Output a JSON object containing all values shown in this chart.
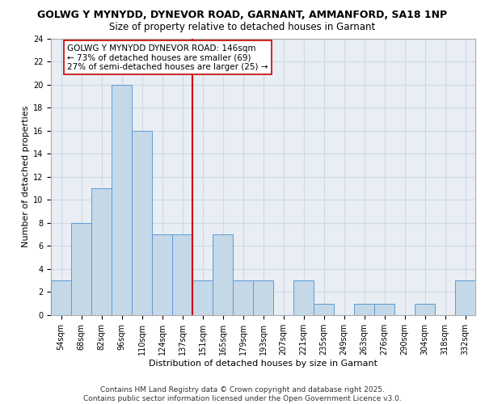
{
  "title_line1": "GOLWG Y MYNYDD, DYNEVOR ROAD, GARNANT, AMMANFORD, SA18 1NP",
  "title_line2": "Size of property relative to detached houses in Garnant",
  "xlabel": "Distribution of detached houses by size in Garnant",
  "ylabel": "Number of detached properties",
  "categories": [
    "54sqm",
    "68sqm",
    "82sqm",
    "96sqm",
    "110sqm",
    "124sqm",
    "137sqm",
    "151sqm",
    "165sqm",
    "179sqm",
    "193sqm",
    "207sqm",
    "221sqm",
    "235sqm",
    "249sqm",
    "263sqm",
    "276sqm",
    "290sqm",
    "304sqm",
    "318sqm",
    "332sqm"
  ],
  "values": [
    3,
    8,
    11,
    20,
    16,
    7,
    7,
    3,
    7,
    3,
    3,
    0,
    3,
    1,
    0,
    1,
    1,
    0,
    1,
    0,
    3
  ],
  "bar_color": "#c5d8e8",
  "bar_edge_color": "#5b9bd5",
  "marker_label": "GOLWG Y MYNYDD DYNEVOR ROAD: 146sqm\n← 73% of detached houses are smaller (69)\n27% of semi-detached houses are larger (25) →",
  "annotation_box_color": "#ffffff",
  "annotation_border_color": "#cc0000",
  "vline_color": "#cc0000",
  "vline_x": 7,
  "ylim": [
    0,
    24
  ],
  "yticks": [
    0,
    2,
    4,
    6,
    8,
    10,
    12,
    14,
    16,
    18,
    20,
    22,
    24
  ],
  "grid_color": "#d0d8e4",
  "bg_color": "#e8eef4",
  "footer": "Contains HM Land Registry data © Crown copyright and database right 2025.\nContains public sector information licensed under the Open Government Licence v3.0.",
  "title_fontsize": 9,
  "subtitle_fontsize": 8.5,
  "axis_label_fontsize": 8,
  "tick_fontsize": 7,
  "annotation_fontsize": 7.5,
  "footer_fontsize": 6.5
}
